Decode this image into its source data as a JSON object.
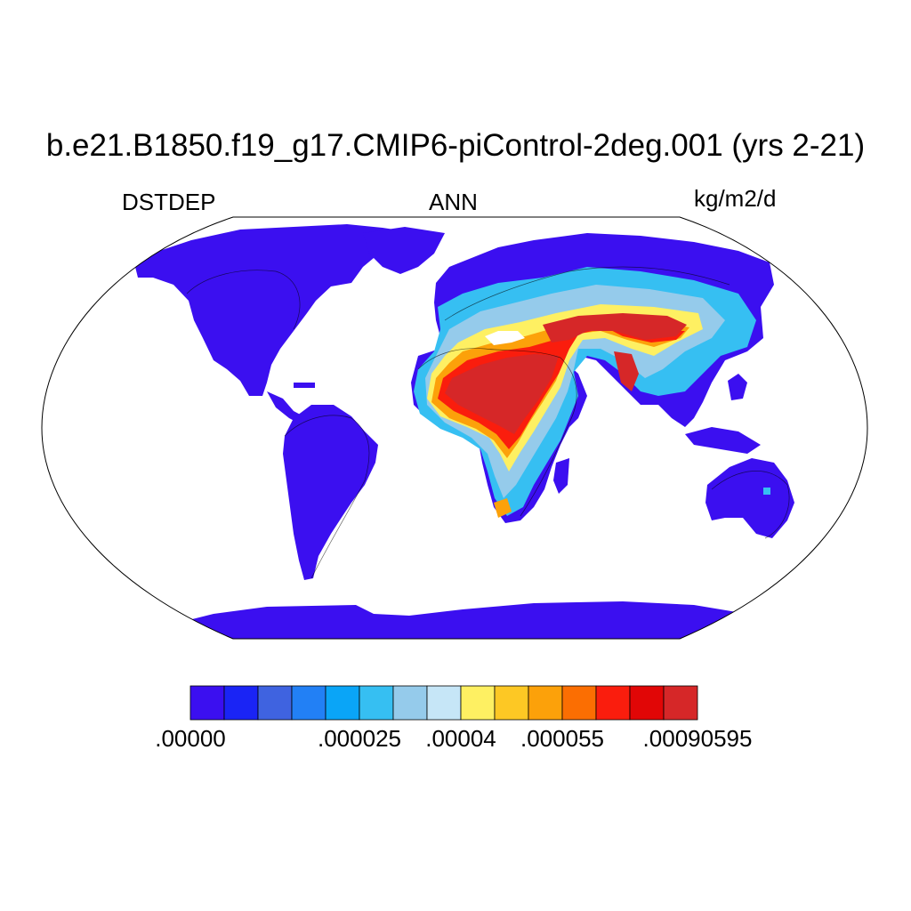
{
  "title": "b.e21.B1850.f19_g17.CMIP6-piControl-2deg.001 (yrs 2-21)",
  "left_label": "DSTDEP",
  "center_label": "ANN",
  "right_label": "kg/m2/d",
  "projection": "robinson",
  "colorbar": {
    "colors": [
      "#3b0ff0",
      "#1a24f5",
      "#3f63e0",
      "#2280f5",
      "#0aa5f7",
      "#36bff2",
      "#95cbeb",
      "#c6e6f7",
      "#fef062",
      "#fdc824",
      "#fca10a",
      "#fb6e02",
      "#fa1d0d",
      "#e10606",
      "#d62728"
    ],
    "labels": [
      {
        "text": ".00000",
        "edge": 0
      },
      {
        "text": ".000025",
        "edge": 5
      },
      {
        "text": ".00004",
        "edge": 8
      },
      {
        "text": ".000055",
        "edge": 11
      },
      {
        "text": ".00090595",
        "edge": 15
      }
    ]
  }
}
